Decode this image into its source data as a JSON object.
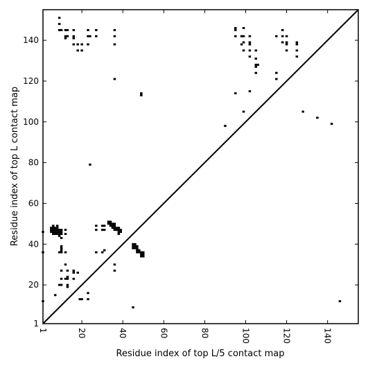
{
  "chart_data": {
    "type": "heatmap",
    "title": "",
    "xlabel": "Residue index of top L/5 contact map",
    "ylabel": "Residue index of top L contact map",
    "xlim": [
      1,
      155
    ],
    "ylim": [
      1,
      155
    ],
    "xticks": [
      1,
      20,
      40,
      60,
      80,
      100,
      120,
      140
    ],
    "yticks": [
      1,
      20,
      40,
      60,
      80,
      100,
      120,
      140
    ],
    "xtick_rotation_deg": -90,
    "grid": false,
    "diagonal_line": true,
    "colors": {
      "contact": "#000000",
      "background": "#ffffff"
    },
    "lower_triangle_points": [
      [
        1,
        46
      ],
      [
        1,
        36
      ],
      [
        1,
        12
      ],
      [
        5,
        48
      ],
      [
        5,
        47
      ],
      [
        5,
        46
      ],
      [
        6,
        49
      ],
      [
        6,
        48
      ],
      [
        6,
        47
      ],
      [
        6,
        46
      ],
      [
        6,
        45
      ],
      [
        7,
        48
      ],
      [
        7,
        47
      ],
      [
        7,
        46
      ],
      [
        7,
        45
      ],
      [
        8,
        49
      ],
      [
        8,
        48
      ],
      [
        8,
        47
      ],
      [
        8,
        46
      ],
      [
        8,
        45
      ],
      [
        9,
        47
      ],
      [
        9,
        46
      ],
      [
        9,
        45
      ],
      [
        9,
        44
      ],
      [
        10,
        47
      ],
      [
        10,
        46
      ],
      [
        10,
        45
      ],
      [
        10,
        43
      ],
      [
        9,
        36
      ],
      [
        10,
        36
      ],
      [
        10,
        37
      ],
      [
        10,
        38
      ],
      [
        10,
        39
      ],
      [
        12,
        47
      ],
      [
        12,
        45
      ],
      [
        12,
        36
      ],
      [
        12,
        30
      ],
      [
        10,
        27
      ],
      [
        13,
        27
      ],
      [
        13,
        24
      ],
      [
        13,
        23
      ],
      [
        12,
        23
      ],
      [
        10,
        23
      ],
      [
        9,
        20
      ],
      [
        10,
        20
      ],
      [
        13,
        20
      ],
      [
        13,
        19
      ],
      [
        7,
        15
      ],
      [
        16,
        27
      ],
      [
        16,
        26
      ],
      [
        18,
        26
      ],
      [
        16,
        23
      ],
      [
        19,
        13
      ],
      [
        20,
        13
      ],
      [
        23,
        13
      ],
      [
        23,
        16
      ],
      [
        27,
        49
      ],
      [
        27,
        47
      ],
      [
        27,
        36
      ],
      [
        30,
        49
      ],
      [
        31,
        49
      ],
      [
        30,
        47
      ],
      [
        31,
        47
      ],
      [
        30,
        36
      ],
      [
        31,
        37
      ],
      [
        33,
        51
      ],
      [
        33,
        50
      ],
      [
        34,
        51
      ],
      [
        34,
        50
      ],
      [
        34,
        49
      ],
      [
        35,
        50
      ],
      [
        35,
        49
      ],
      [
        35,
        48
      ],
      [
        36,
        50
      ],
      [
        36,
        49
      ],
      [
        36,
        48
      ],
      [
        36,
        47
      ],
      [
        37,
        48
      ],
      [
        37,
        47
      ],
      [
        38,
        48
      ],
      [
        38,
        47
      ],
      [
        38,
        46
      ],
      [
        38,
        45
      ],
      [
        39,
        47
      ],
      [
        39,
        46
      ],
      [
        36,
        30
      ],
      [
        36,
        27
      ],
      [
        45,
        40
      ],
      [
        45,
        39
      ],
      [
        45,
        38
      ],
      [
        46,
        40
      ],
      [
        46,
        39
      ],
      [
        46,
        38
      ],
      [
        47,
        39
      ],
      [
        47,
        38
      ],
      [
        47,
        37
      ],
      [
        47,
        36
      ],
      [
        48,
        37
      ],
      [
        48,
        36
      ],
      [
        49,
        36
      ],
      [
        49,
        35
      ],
      [
        49,
        34
      ],
      [
        50,
        36
      ],
      [
        50,
        35
      ],
      [
        50,
        34
      ],
      [
        45,
        9
      ],
      [
        146,
        12
      ]
    ],
    "upper_triangle_points": [
      [
        9,
        151
      ],
      [
        9,
        148
      ],
      [
        9,
        145
      ],
      [
        10,
        145
      ],
      [
        12,
        145
      ],
      [
        13,
        145
      ],
      [
        12,
        142
      ],
      [
        13,
        142
      ],
      [
        12,
        141
      ],
      [
        16,
        145
      ],
      [
        16,
        142
      ],
      [
        16,
        141
      ],
      [
        16,
        138
      ],
      [
        18,
        138
      ],
      [
        18,
        135
      ],
      [
        20,
        138
      ],
      [
        20,
        135
      ],
      [
        23,
        145
      ],
      [
        23,
        142
      ],
      [
        24,
        142
      ],
      [
        23,
        138
      ],
      [
        27,
        145
      ],
      [
        27,
        142
      ],
      [
        24,
        79
      ],
      [
        36,
        145
      ],
      [
        36,
        142
      ],
      [
        36,
        138
      ],
      [
        36,
        121
      ],
      [
        49,
        114
      ],
      [
        49,
        113
      ],
      [
        95,
        146
      ],
      [
        95,
        145
      ],
      [
        95,
        142
      ],
      [
        95,
        114
      ],
      [
        90,
        98
      ],
      [
        98,
        142
      ],
      [
        99,
        146
      ],
      [
        99,
        142
      ],
      [
        98,
        138
      ],
      [
        99,
        139
      ],
      [
        99,
        135
      ],
      [
        99,
        105
      ],
      [
        102,
        142
      ],
      [
        102,
        139
      ],
      [
        102,
        138
      ],
      [
        102,
        135
      ],
      [
        102,
        132
      ],
      [
        102,
        115
      ],
      [
        105,
        135
      ],
      [
        105,
        131
      ],
      [
        105,
        128
      ],
      [
        105,
        127
      ],
      [
        106,
        128
      ],
      [
        105,
        124
      ],
      [
        115,
        142
      ],
      [
        115,
        124
      ],
      [
        115,
        121
      ],
      [
        118,
        145
      ],
      [
        118,
        142
      ],
      [
        118,
        139
      ],
      [
        120,
        142
      ],
      [
        120,
        139
      ],
      [
        120,
        138
      ],
      [
        120,
        135
      ],
      [
        125,
        139
      ],
      [
        125,
        138
      ],
      [
        125,
        135
      ],
      [
        125,
        132
      ],
      [
        128,
        105
      ],
      [
        135,
        102
      ],
      [
        142,
        99
      ]
    ]
  }
}
